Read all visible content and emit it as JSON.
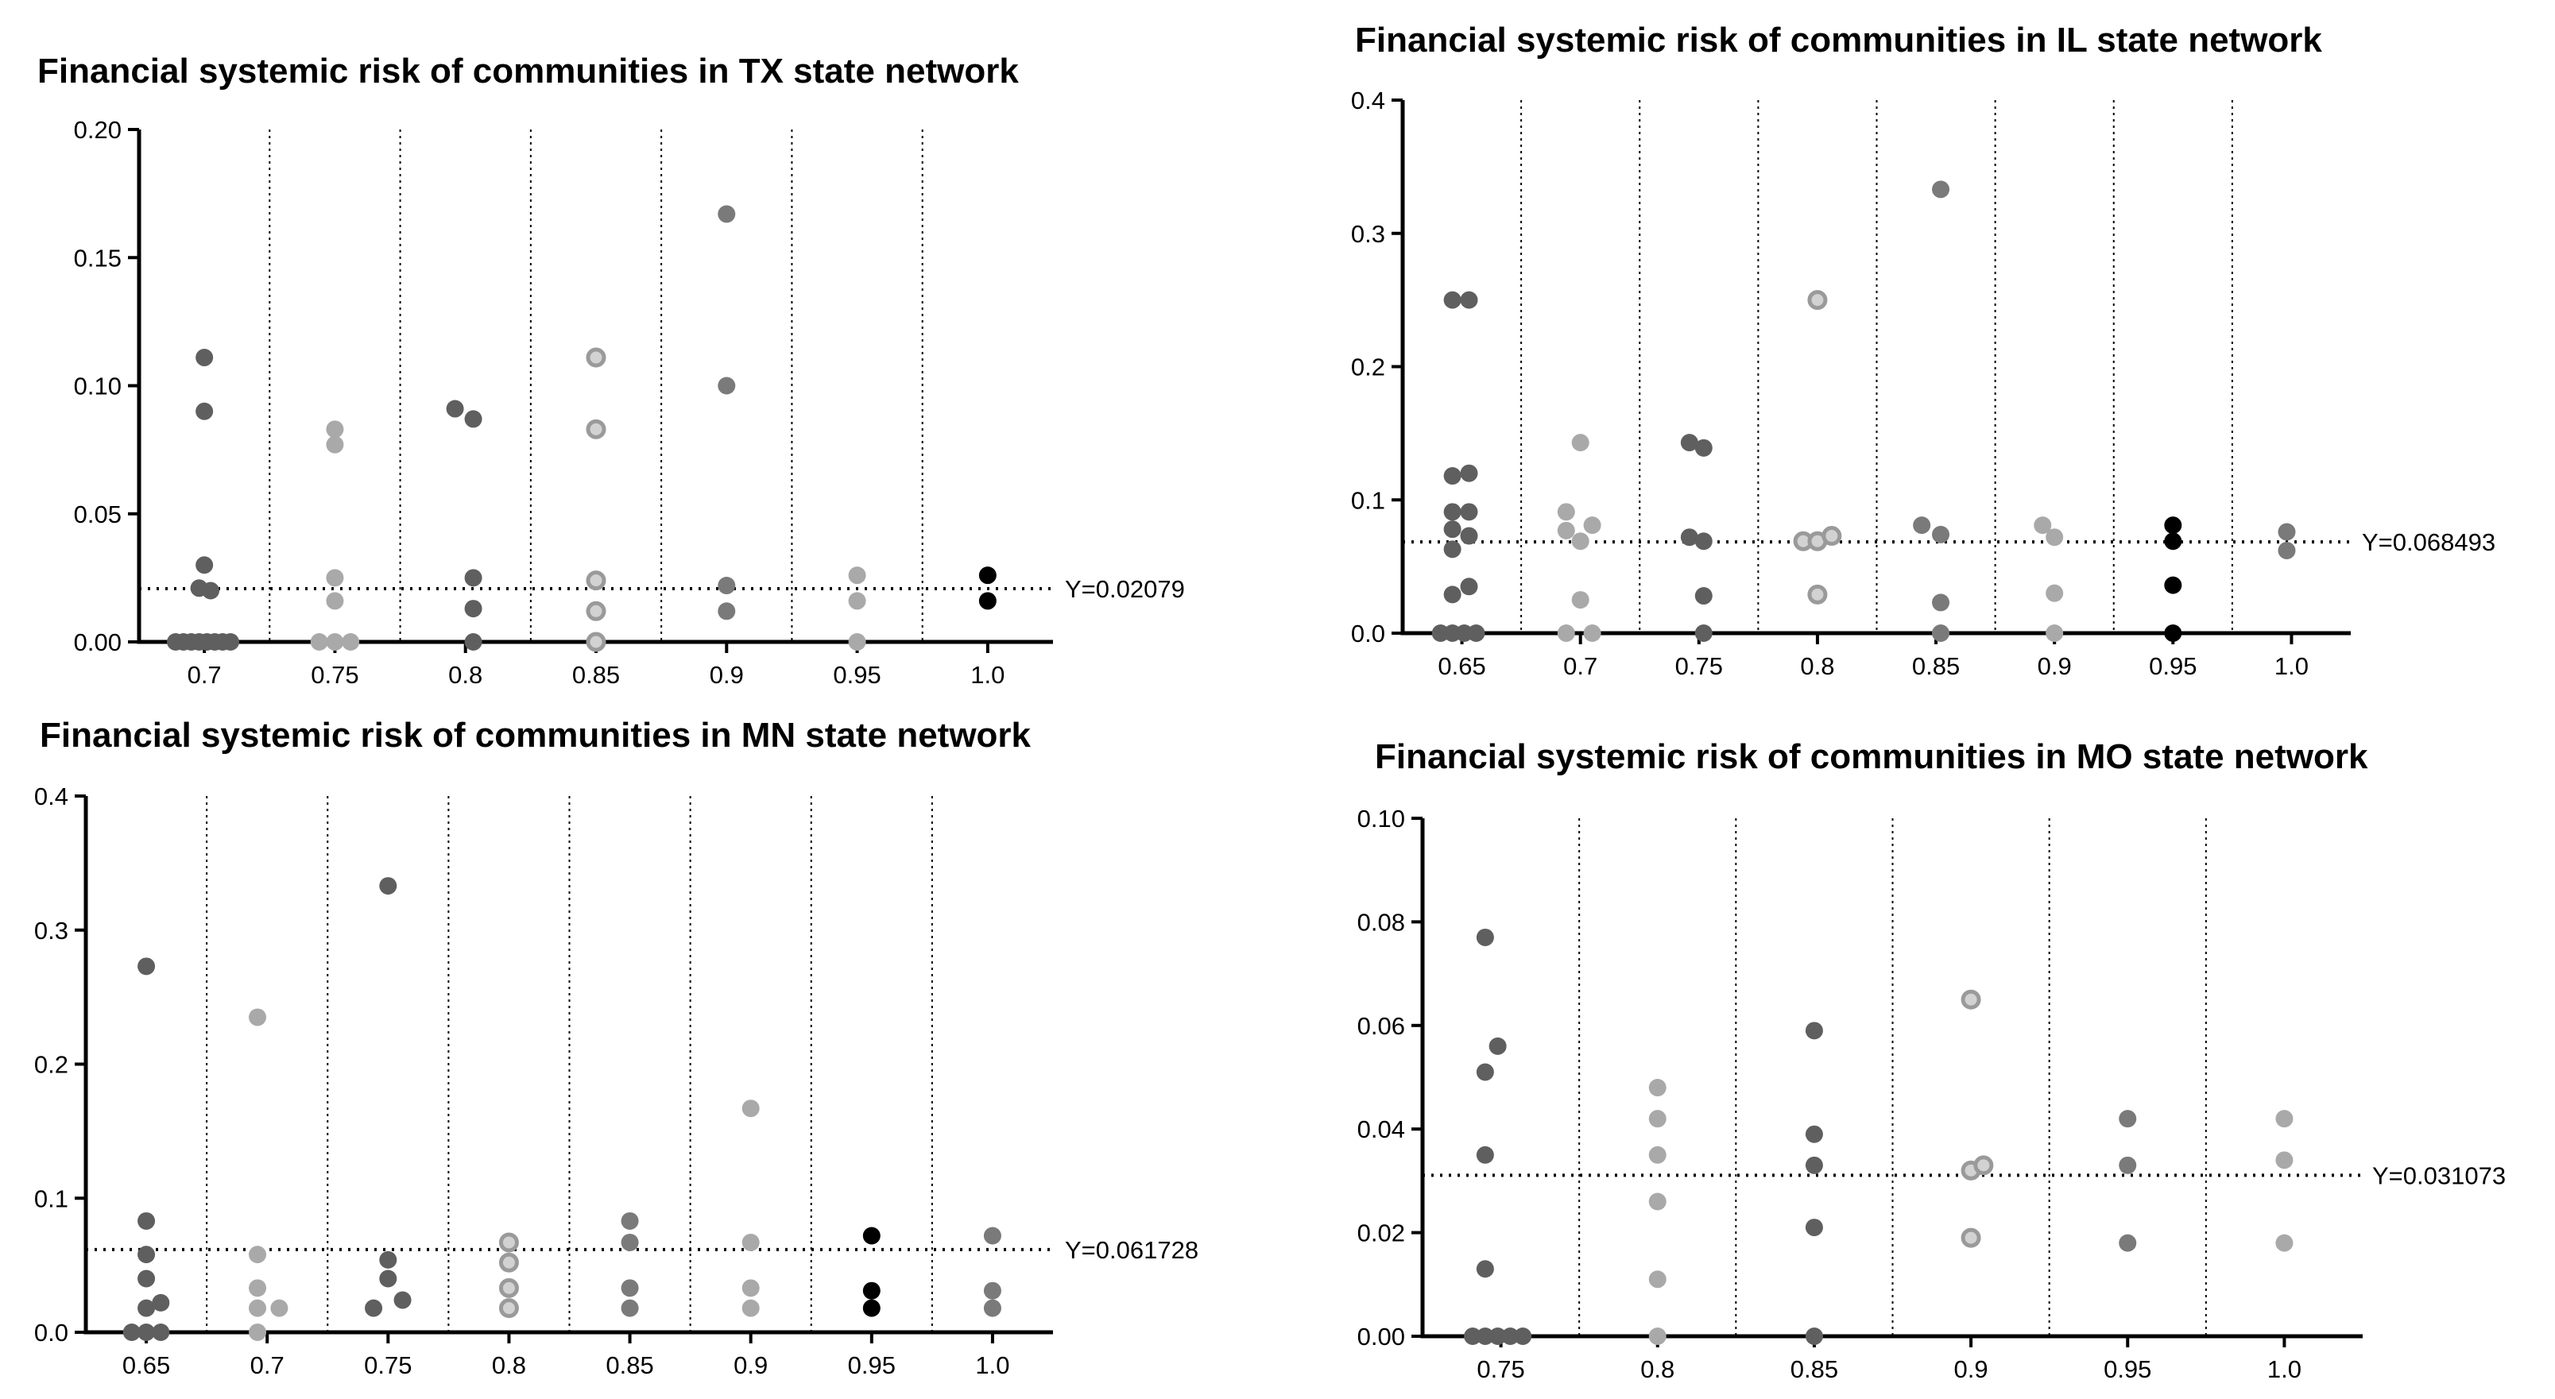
{
  "chart_data": [
    {
      "type": "scatter",
      "title": "Financial systemic risk of communities in TX state network",
      "categories": [
        "0.7",
        "0.75",
        "0.8",
        "0.85",
        "0.9",
        "0.95",
        "1.0"
      ],
      "ylim": [
        0,
        0.2
      ],
      "yticks": [
        "0.00",
        "0.05",
        "0.10",
        "0.15",
        "0.20"
      ],
      "reference_line": {
        "value": 0.02079,
        "label": "Y=0.02079"
      },
      "points": [
        {
          "c": 0,
          "o": -0.55,
          "y": 0,
          "s": "dark"
        },
        {
          "c": 0,
          "o": -0.4,
          "y": 0,
          "s": "dark"
        },
        {
          "c": 0,
          "o": -0.25,
          "y": 0,
          "s": "dark"
        },
        {
          "c": 0,
          "o": -0.1,
          "y": 0,
          "s": "dark"
        },
        {
          "c": 0,
          "o": 0.05,
          "y": 0,
          "s": "dark"
        },
        {
          "c": 0,
          "o": 0.2,
          "y": 0,
          "s": "dark"
        },
        {
          "c": 0,
          "o": 0.35,
          "y": 0,
          "s": "dark"
        },
        {
          "c": 0,
          "o": 0.5,
          "y": 0,
          "s": "dark"
        },
        {
          "c": 0,
          "o": -0.1,
          "y": 0.021,
          "s": "dark"
        },
        {
          "c": 0,
          "o": 0.12,
          "y": 0.02,
          "s": "dark"
        },
        {
          "c": 0,
          "o": 0,
          "y": 0.03,
          "s": "dark"
        },
        {
          "c": 0,
          "o": 0,
          "y": 0.09,
          "s": "dark"
        },
        {
          "c": 0,
          "o": 0,
          "y": 0.111,
          "s": "dark"
        },
        {
          "c": 1,
          "o": -0.3,
          "y": 0,
          "s": "light"
        },
        {
          "c": 1,
          "o": 0,
          "y": 0,
          "s": "light"
        },
        {
          "c": 1,
          "o": 0.3,
          "y": 0,
          "s": "light"
        },
        {
          "c": 1,
          "o": 0,
          "y": 0.016,
          "s": "light"
        },
        {
          "c": 1,
          "o": 0,
          "y": 0.025,
          "s": "light"
        },
        {
          "c": 1,
          "o": 0,
          "y": 0.077,
          "s": "light"
        },
        {
          "c": 1,
          "o": 0,
          "y": 0.083,
          "s": "light"
        },
        {
          "c": 2,
          "o": 0.15,
          "y": 0,
          "s": "dark"
        },
        {
          "c": 2,
          "o": 0.15,
          "y": 0.013,
          "s": "dark"
        },
        {
          "c": 2,
          "o": 0.15,
          "y": 0.025,
          "s": "dark"
        },
        {
          "c": 2,
          "o": 0.15,
          "y": 0.087,
          "s": "dark"
        },
        {
          "c": 2,
          "o": -0.2,
          "y": 0.091,
          "s": "dark"
        },
        {
          "c": 3,
          "o": 0,
          "y": 0,
          "s": "ring"
        },
        {
          "c": 3,
          "o": 0,
          "y": 0.012,
          "s": "ring"
        },
        {
          "c": 3,
          "o": 0,
          "y": 0.024,
          "s": "ring"
        },
        {
          "c": 3,
          "o": 0,
          "y": 0.083,
          "s": "ring"
        },
        {
          "c": 3,
          "o": 0,
          "y": 0.111,
          "s": "ring"
        },
        {
          "c": 4,
          "o": 0,
          "y": 0.012,
          "s": "medium"
        },
        {
          "c": 4,
          "o": 0,
          "y": 0.022,
          "s": "medium"
        },
        {
          "c": 4,
          "o": 0,
          "y": 0.1,
          "s": "medium"
        },
        {
          "c": 4,
          "o": 0,
          "y": 0.167,
          "s": "medium"
        },
        {
          "c": 5,
          "o": 0,
          "y": 0,
          "s": "light"
        },
        {
          "c": 5,
          "o": 0,
          "y": 0.016,
          "s": "light"
        },
        {
          "c": 5,
          "o": 0,
          "y": 0.026,
          "s": "light"
        },
        {
          "c": 6,
          "o": 0,
          "y": 0.016,
          "s": "black"
        },
        {
          "c": 6,
          "o": 0,
          "y": 0.026,
          "s": "black"
        }
      ]
    },
    {
      "type": "scatter",
      "title": "Financial systemic risk of communities in IL state network",
      "categories": [
        "0.65",
        "0.7",
        "0.75",
        "0.8",
        "0.85",
        "0.9",
        "0.95",
        "1.0"
      ],
      "ylim": [
        0,
        0.4
      ],
      "yticks": [
        "0.0",
        "0.1",
        "0.2",
        "0.3",
        "0.4"
      ],
      "reference_line": {
        "value": 0.068493,
        "label": "Y=0.068493"
      },
      "points": [
        {
          "c": 0,
          "o": -0.45,
          "y": 0,
          "s": "dark"
        },
        {
          "c": 0,
          "o": -0.2,
          "y": 0,
          "s": "dark"
        },
        {
          "c": 0,
          "o": 0.05,
          "y": 0,
          "s": "dark"
        },
        {
          "c": 0,
          "o": 0.3,
          "y": 0,
          "s": "dark"
        },
        {
          "c": 0,
          "o": -0.2,
          "y": 0.029,
          "s": "dark"
        },
        {
          "c": 0,
          "o": 0.15,
          "y": 0.035,
          "s": "dark"
        },
        {
          "c": 0,
          "o": -0.2,
          "y": 0.063,
          "s": "dark"
        },
        {
          "c": 0,
          "o": 0.15,
          "y": 0.073,
          "s": "dark"
        },
        {
          "c": 0,
          "o": -0.2,
          "y": 0.078,
          "s": "dark"
        },
        {
          "c": 0,
          "o": -0.2,
          "y": 0.091,
          "s": "dark"
        },
        {
          "c": 0,
          "o": 0.15,
          "y": 0.091,
          "s": "dark"
        },
        {
          "c": 0,
          "o": -0.2,
          "y": 0.118,
          "s": "dark"
        },
        {
          "c": 0,
          "o": 0.15,
          "y": 0.12,
          "s": "dark"
        },
        {
          "c": 0,
          "o": -0.2,
          "y": 0.25,
          "s": "dark"
        },
        {
          "c": 0,
          "o": 0.15,
          "y": 0.25,
          "s": "dark"
        },
        {
          "c": 1,
          "o": -0.3,
          "y": 0,
          "s": "light"
        },
        {
          "c": 1,
          "o": 0.25,
          "y": 0,
          "s": "light"
        },
        {
          "c": 1,
          "o": 0,
          "y": 0.025,
          "s": "light"
        },
        {
          "c": 1,
          "o": 0,
          "y": 0.069,
          "s": "light"
        },
        {
          "c": 1,
          "o": -0.3,
          "y": 0.077,
          "s": "light"
        },
        {
          "c": 1,
          "o": 0.25,
          "y": 0.081,
          "s": "light"
        },
        {
          "c": 1,
          "o": -0.3,
          "y": 0.091,
          "s": "light"
        },
        {
          "c": 1,
          "o": 0,
          "y": 0.143,
          "s": "light"
        },
        {
          "c": 2,
          "o": 0.1,
          "y": 0,
          "s": "dark"
        },
        {
          "c": 2,
          "o": 0.1,
          "y": 0.028,
          "s": "dark"
        },
        {
          "c": 2,
          "o": -0.2,
          "y": 0.072,
          "s": "dark"
        },
        {
          "c": 2,
          "o": 0.1,
          "y": 0.069,
          "s": "dark"
        },
        {
          "c": 2,
          "o": 0.1,
          "y": 0.139,
          "s": "dark"
        },
        {
          "c": 2,
          "o": -0.2,
          "y": 0.143,
          "s": "dark"
        },
        {
          "c": 3,
          "o": -0.3,
          "y": 0.069,
          "s": "ring"
        },
        {
          "c": 3,
          "o": 0,
          "y": 0.069,
          "s": "ring"
        },
        {
          "c": 3,
          "o": 0.3,
          "y": 0.073,
          "s": "ring"
        },
        {
          "c": 3,
          "o": 0,
          "y": 0.029,
          "s": "ring"
        },
        {
          "c": 3,
          "o": 0,
          "y": 0.25,
          "s": "ring"
        },
        {
          "c": 4,
          "o": -0.3,
          "y": 0.081,
          "s": "medium"
        },
        {
          "c": 4,
          "o": 0.1,
          "y": 0,
          "s": "medium"
        },
        {
          "c": 4,
          "o": 0.1,
          "y": 0.023,
          "s": "medium"
        },
        {
          "c": 4,
          "o": 0.1,
          "y": 0.074,
          "s": "medium"
        },
        {
          "c": 4,
          "o": 0.1,
          "y": 0.333,
          "s": "medium"
        },
        {
          "c": 5,
          "o": -0.25,
          "y": 0.081,
          "s": "light"
        },
        {
          "c": 5,
          "o": 0,
          "y": 0,
          "s": "light"
        },
        {
          "c": 5,
          "o": 0,
          "y": 0.03,
          "s": "light"
        },
        {
          "c": 5,
          "o": 0,
          "y": 0.072,
          "s": "light"
        },
        {
          "c": 6,
          "o": 0,
          "y": 0,
          "s": "black"
        },
        {
          "c": 6,
          "o": 0,
          "y": 0.036,
          "s": "black"
        },
        {
          "c": 6,
          "o": 0,
          "y": 0.069,
          "s": "black"
        },
        {
          "c": 6,
          "o": 0,
          "y": 0.081,
          "s": "black"
        },
        {
          "c": 7,
          "o": -0.1,
          "y": 0.062,
          "s": "medium"
        },
        {
          "c": 7,
          "o": -0.1,
          "y": 0.076,
          "s": "medium"
        }
      ]
    },
    {
      "type": "scatter",
      "title": "Financial systemic risk of communities in MN state network",
      "categories": [
        "0.65",
        "0.7",
        "0.75",
        "0.8",
        "0.85",
        "0.9",
        "0.95",
        "1.0"
      ],
      "ylim": [
        0,
        0.4
      ],
      "yticks": [
        "0.0",
        "0.1",
        "0.2",
        "0.3",
        "0.4"
      ],
      "reference_line": {
        "value": 0.061728,
        "label": "Y=0.061728"
      },
      "points": [
        {
          "c": 0,
          "o": -0.3,
          "y": 0,
          "s": "dark"
        },
        {
          "c": 0,
          "o": 0,
          "y": 0,
          "s": "dark"
        },
        {
          "c": 0,
          "o": 0.3,
          "y": 0,
          "s": "dark"
        },
        {
          "c": 0,
          "o": 0,
          "y": 0.018,
          "s": "dark"
        },
        {
          "c": 0,
          "o": 0.3,
          "y": 0.022,
          "s": "dark"
        },
        {
          "c": 0,
          "o": 0,
          "y": 0.04,
          "s": "dark"
        },
        {
          "c": 0,
          "o": 0,
          "y": 0.058,
          "s": "dark"
        },
        {
          "c": 0,
          "o": 0,
          "y": 0.083,
          "s": "dark"
        },
        {
          "c": 0,
          "o": 0,
          "y": 0.273,
          "s": "dark"
        },
        {
          "c": 1,
          "o": -0.2,
          "y": 0,
          "s": "light"
        },
        {
          "c": 1,
          "o": -0.2,
          "y": 0.018,
          "s": "light"
        },
        {
          "c": 1,
          "o": 0.25,
          "y": 0.018,
          "s": "light"
        },
        {
          "c": 1,
          "o": -0.2,
          "y": 0.033,
          "s": "light"
        },
        {
          "c": 1,
          "o": -0.2,
          "y": 0.058,
          "s": "light"
        },
        {
          "c": 1,
          "o": -0.2,
          "y": 0.235,
          "s": "light"
        },
        {
          "c": 2,
          "o": -0.3,
          "y": 0.018,
          "s": "dark"
        },
        {
          "c": 2,
          "o": 0.3,
          "y": 0.024,
          "s": "dark"
        },
        {
          "c": 2,
          "o": 0,
          "y": 0.04,
          "s": "dark"
        },
        {
          "c": 2,
          "o": 0,
          "y": 0.054,
          "s": "dark"
        },
        {
          "c": 2,
          "o": 0,
          "y": 0.333,
          "s": "dark"
        },
        {
          "c": 3,
          "o": 0,
          "y": 0.018,
          "s": "ring"
        },
        {
          "c": 3,
          "o": 0,
          "y": 0.033,
          "s": "ring"
        },
        {
          "c": 3,
          "o": 0,
          "y": 0.052,
          "s": "ring"
        },
        {
          "c": 3,
          "o": 0,
          "y": 0.067,
          "s": "ring"
        },
        {
          "c": 4,
          "o": 0,
          "y": 0.018,
          "s": "medium"
        },
        {
          "c": 4,
          "o": 0,
          "y": 0.033,
          "s": "medium"
        },
        {
          "c": 4,
          "o": 0,
          "y": 0.067,
          "s": "medium"
        },
        {
          "c": 4,
          "o": 0,
          "y": 0.083,
          "s": "medium"
        },
        {
          "c": 5,
          "o": 0,
          "y": 0.018,
          "s": "light"
        },
        {
          "c": 5,
          "o": 0,
          "y": 0.033,
          "s": "light"
        },
        {
          "c": 5,
          "o": 0,
          "y": 0.067,
          "s": "light"
        },
        {
          "c": 5,
          "o": 0,
          "y": 0.167,
          "s": "light"
        },
        {
          "c": 6,
          "o": 0,
          "y": 0.018,
          "s": "black"
        },
        {
          "c": 6,
          "o": 0,
          "y": 0.031,
          "s": "black"
        },
        {
          "c": 6,
          "o": 0,
          "y": 0.072,
          "s": "black"
        },
        {
          "c": 7,
          "o": 0,
          "y": 0.018,
          "s": "medium"
        },
        {
          "c": 7,
          "o": 0,
          "y": 0.031,
          "s": "medium"
        },
        {
          "c": 7,
          "o": 0,
          "y": 0.072,
          "s": "medium"
        }
      ]
    },
    {
      "type": "scatter",
      "title": "Financial systemic risk of communities in MO state network",
      "categories": [
        "0.75",
        "0.8",
        "0.85",
        "0.9",
        "0.95",
        "1.0"
      ],
      "ylim": [
        0,
        0.1
      ],
      "yticks": [
        "0.00",
        "0.02",
        "0.04",
        "0.06",
        "0.08",
        "0.10"
      ],
      "reference_line": {
        "value": 0.031073,
        "label": "Y=0.031073"
      },
      "points": [
        {
          "c": 0,
          "o": -0.45,
          "y": 0,
          "s": "dark"
        },
        {
          "c": 0,
          "o": -0.25,
          "y": 0,
          "s": "dark"
        },
        {
          "c": 0,
          "o": -0.05,
          "y": 0,
          "s": "dark"
        },
        {
          "c": 0,
          "o": 0.15,
          "y": 0,
          "s": "dark"
        },
        {
          "c": 0,
          "o": 0.35,
          "y": 0,
          "s": "dark"
        },
        {
          "c": 0,
          "o": -0.25,
          "y": 0.013,
          "s": "dark"
        },
        {
          "c": 0,
          "o": -0.25,
          "y": 0.035,
          "s": "dark"
        },
        {
          "c": 0,
          "o": -0.25,
          "y": 0.051,
          "s": "dark"
        },
        {
          "c": 0,
          "o": -0.05,
          "y": 0.056,
          "s": "dark"
        },
        {
          "c": 0,
          "o": -0.25,
          "y": 0.077,
          "s": "dark"
        },
        {
          "c": 1,
          "o": 0,
          "y": 0,
          "s": "light"
        },
        {
          "c": 1,
          "o": 0,
          "y": 0.011,
          "s": "light"
        },
        {
          "c": 1,
          "o": 0,
          "y": 0.026,
          "s": "light"
        },
        {
          "c": 1,
          "o": 0,
          "y": 0.035,
          "s": "light"
        },
        {
          "c": 1,
          "o": 0,
          "y": 0.042,
          "s": "light"
        },
        {
          "c": 1,
          "o": 0,
          "y": 0.048,
          "s": "light"
        },
        {
          "c": 2,
          "o": 0,
          "y": 0,
          "s": "dark"
        },
        {
          "c": 2,
          "o": 0,
          "y": 0.021,
          "s": "dark"
        },
        {
          "c": 2,
          "o": 0,
          "y": 0.033,
          "s": "dark"
        },
        {
          "c": 2,
          "o": 0,
          "y": 0.039,
          "s": "dark"
        },
        {
          "c": 2,
          "o": 0,
          "y": 0.059,
          "s": "dark"
        },
        {
          "c": 3,
          "o": 0,
          "y": 0.019,
          "s": "ring"
        },
        {
          "c": 3,
          "o": 0,
          "y": 0.032,
          "s": "ring"
        },
        {
          "c": 3,
          "o": 0.2,
          "y": 0.033,
          "s": "ring"
        },
        {
          "c": 3,
          "o": 0,
          "y": 0.065,
          "s": "ring"
        },
        {
          "c": 4,
          "o": 0,
          "y": 0.018,
          "s": "medium"
        },
        {
          "c": 4,
          "o": 0,
          "y": 0.033,
          "s": "medium"
        },
        {
          "c": 4,
          "o": 0,
          "y": 0.042,
          "s": "medium"
        },
        {
          "c": 5,
          "o": 0,
          "y": 0.018,
          "s": "light"
        },
        {
          "c": 5,
          "o": 0,
          "y": 0.034,
          "s": "light"
        },
        {
          "c": 5,
          "o": 0,
          "y": 0.042,
          "s": "light"
        }
      ]
    }
  ],
  "colors": {
    "dark": "#5f5f5f",
    "medium": "#7a7a7a",
    "light": "#a9a9a9",
    "ring_fill": "#d2d2d2",
    "ring_stroke": "#9a9a9a",
    "black": "#000000"
  }
}
